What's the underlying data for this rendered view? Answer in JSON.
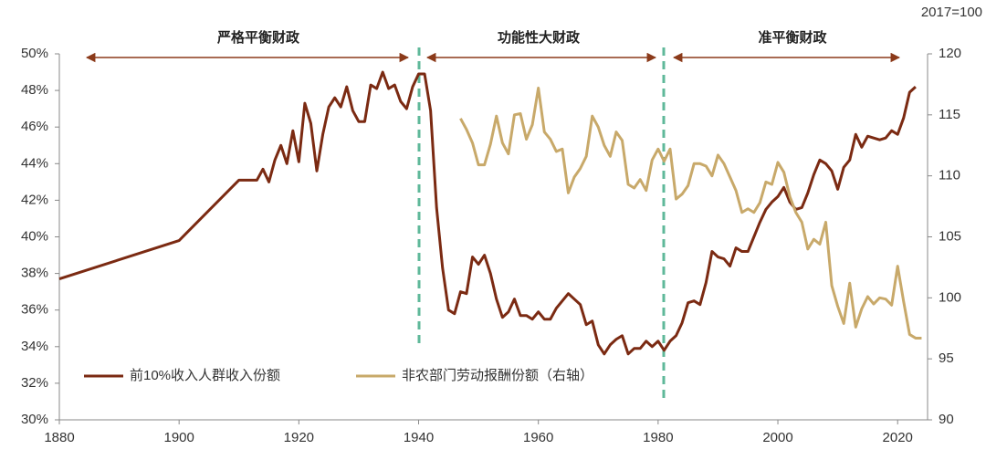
{
  "chart_data": {
    "type": "line",
    "annotations": [
      "严格平衡财政",
      "功能性大财政",
      "准平衡财政"
    ],
    "y2_label": "2017=100",
    "xlim": [
      1880,
      2025
    ],
    "xticks": [
      1880,
      1900,
      1920,
      1940,
      1960,
      1980,
      2000,
      2020
    ],
    "ylim": [
      30,
      50
    ],
    "yticks": [
      {
        "value": 30,
        "label": "30%"
      },
      {
        "value": 32,
        "label": "32%"
      },
      {
        "value": 34,
        "label": "34%"
      },
      {
        "value": 36,
        "label": "36%"
      },
      {
        "value": 38,
        "label": "38%"
      },
      {
        "value": 40,
        "label": "40%"
      },
      {
        "value": 42,
        "label": "42%"
      },
      {
        "value": 44,
        "label": "44%"
      },
      {
        "value": 46,
        "label": "46%"
      },
      {
        "value": 48,
        "label": "48%"
      },
      {
        "value": 50,
        "label": "50%"
      }
    ],
    "y2lim": [
      90,
      120
    ],
    "y2ticks": [
      90,
      95,
      100,
      105,
      110,
      115,
      120
    ],
    "legend": "lower left",
    "series": [
      {
        "name": "前10%收入人群收入份额",
        "color": "#7b2a12",
        "axis": "y",
        "x": [
          1880,
          1900,
          1910,
          1913,
          1914,
          1915,
          1916,
          1917,
          1918,
          1919,
          1920,
          1921,
          1922,
          1923,
          1924,
          1925,
          1926,
          1927,
          1928,
          1929,
          1930,
          1931,
          1932,
          1933,
          1934,
          1935,
          1936,
          1937,
          1938,
          1939,
          1940,
          1941,
          1942,
          1943,
          1944,
          1945,
          1946,
          1947,
          1948,
          1949,
          1950,
          1951,
          1952,
          1953,
          1954,
          1955,
          1956,
          1957,
          1958,
          1959,
          1960,
          1961,
          1962,
          1963,
          1964,
          1965,
          1966,
          1967,
          1968,
          1969,
          1970,
          1971,
          1972,
          1973,
          1974,
          1975,
          1976,
          1977,
          1978,
          1979,
          1980,
          1981,
          1982,
          1983,
          1984,
          1985,
          1986,
          1987,
          1988,
          1989,
          1990,
          1991,
          1992,
          1993,
          1994,
          1995,
          1996,
          1997,
          1998,
          1999,
          2000,
          2001,
          2002,
          2003,
          2004,
          2005,
          2006,
          2007,
          2008,
          2009,
          2010,
          2011,
          2012,
          2013,
          2014,
          2015,
          2016,
          2017,
          2018,
          2019,
          2020,
          2021,
          2022,
          2023
        ],
        "values": [
          37.7,
          39.8,
          43.1,
          43.1,
          43.7,
          43.0,
          44.2,
          45.0,
          44.0,
          45.8,
          44.1,
          47.3,
          46.2,
          43.6,
          45.6,
          47.1,
          47.6,
          47.1,
          48.2,
          46.9,
          46.3,
          46.3,
          48.3,
          48.1,
          49.0,
          48.1,
          48.3,
          47.4,
          47.0,
          48.2,
          48.9,
          48.9,
          46.9,
          41.6,
          38.3,
          36.0,
          35.8,
          37.0,
          36.9,
          38.9,
          38.5,
          39.0,
          38.0,
          36.6,
          35.6,
          35.9,
          36.6,
          35.7,
          35.7,
          35.5,
          35.9,
          35.5,
          35.5,
          36.1,
          36.5,
          36.9,
          36.6,
          36.3,
          35.2,
          35.4,
          34.1,
          33.6,
          34.1,
          34.4,
          34.6,
          33.6,
          33.9,
          33.9,
          34.3,
          34.0,
          34.3,
          33.8,
          34.3,
          34.6,
          35.3,
          36.4,
          36.5,
          36.3,
          37.5,
          39.2,
          38.9,
          38.8,
          38.4,
          39.4,
          39.2,
          39.2,
          40.0,
          40.8,
          41.5,
          41.9,
          42.2,
          42.7,
          41.9,
          41.5,
          41.6,
          42.4,
          43.4,
          44.2,
          44.0,
          43.6,
          42.6,
          43.8,
          44.2,
          45.6,
          44.9,
          45.5,
          45.4,
          45.3,
          45.4,
          45.8,
          45.6,
          46.5,
          47.9,
          48.2
        ]
      },
      {
        "name": "非农部门劳动报酬份额（右轴）",
        "color": "#c8a96a",
        "axis": "y2",
        "x": [
          1947,
          1948,
          1949,
          1950,
          1951,
          1952,
          1953,
          1954,
          1955,
          1956,
          1957,
          1958,
          1959,
          1960,
          1961,
          1962,
          1963,
          1964,
          1965,
          1966,
          1967,
          1968,
          1969,
          1970,
          1971,
          1972,
          1973,
          1974,
          1975,
          1976,
          1977,
          1978,
          1979,
          1980,
          1981,
          1982,
          1983,
          1984,
          1985,
          1986,
          1987,
          1988,
          1989,
          1990,
          1991,
          1992,
          1993,
          1994,
          1995,
          1996,
          1997,
          1998,
          1999,
          2000,
          2001,
          2002,
          2003,
          2004,
          2005,
          2006,
          2007,
          2008,
          2009,
          2010,
          2011,
          2012,
          2013,
          2014,
          2015,
          2016,
          2017,
          2018,
          2019,
          2020,
          2021,
          2022,
          2023,
          2024
        ],
        "values": [
          114.7,
          113.8,
          112.7,
          110.9,
          110.9,
          112.6,
          114.9,
          112.7,
          111.8,
          115.0,
          115.1,
          113.0,
          114.2,
          117.2,
          113.6,
          113.0,
          112.0,
          112.2,
          108.6,
          109.9,
          110.6,
          111.6,
          114.9,
          114.0,
          112.5,
          111.6,
          113.6,
          112.9,
          109.3,
          109.0,
          109.7,
          108.8,
          111.3,
          112.2,
          111.2,
          112.2,
          108.1,
          108.5,
          109.2,
          111.0,
          111.0,
          110.8,
          110.0,
          111.7,
          111.0,
          109.9,
          108.8,
          107.0,
          107.3,
          107.0,
          107.8,
          109.5,
          109.3,
          111.1,
          110.3,
          108.3,
          107.0,
          106.2,
          104.0,
          104.8,
          104.4,
          106.2,
          101.0,
          99.3,
          97.9,
          101.2,
          97.6,
          99.1,
          100.1,
          99.5,
          100.0,
          99.9,
          99.4,
          102.6,
          99.7,
          97.0,
          96.7,
          96.7
        ]
      }
    ]
  }
}
